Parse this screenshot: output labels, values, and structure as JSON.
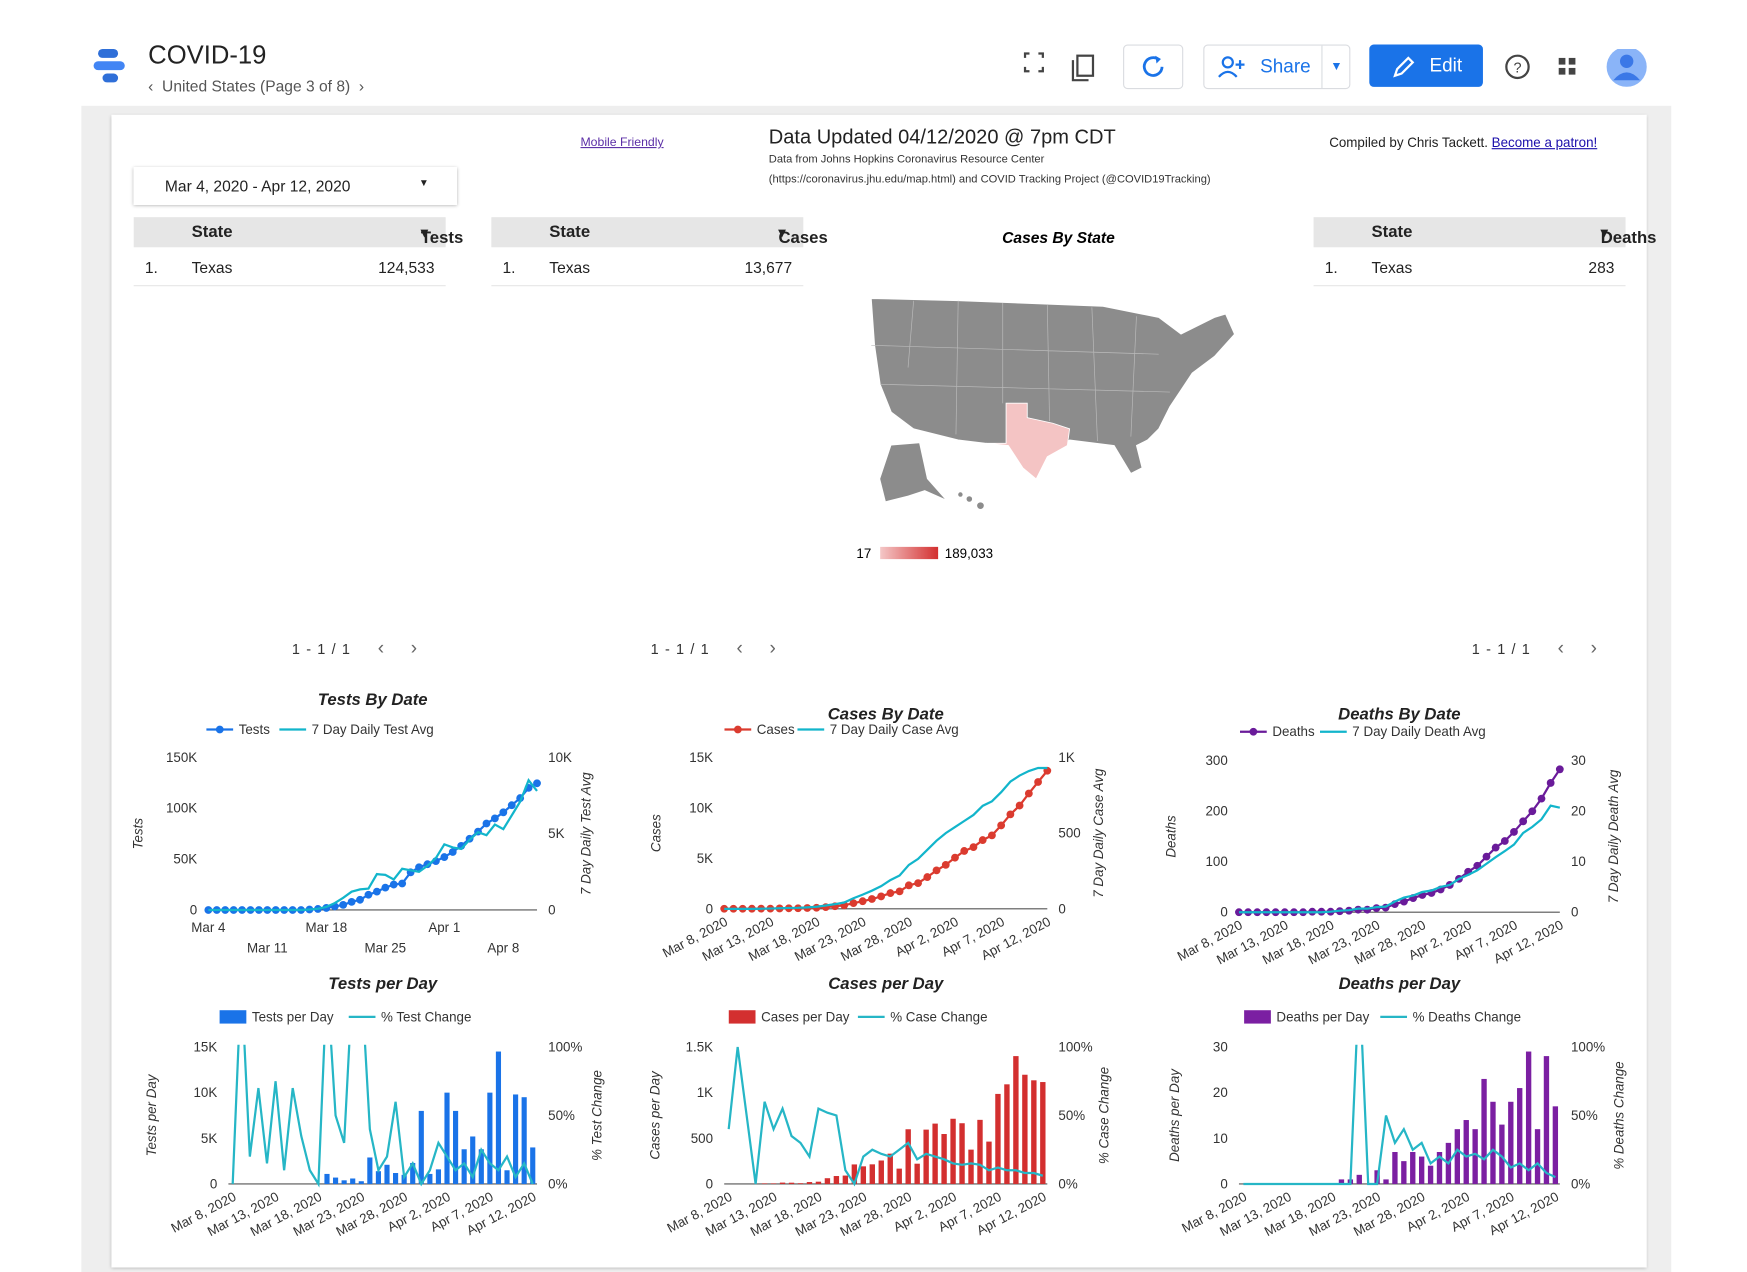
{
  "header": {
    "app_title": "COVID-19",
    "page": "United States (Page 3 of 8)",
    "share": "Share",
    "edit": "Edit"
  },
  "report": {
    "mobile": "Mobile Friendly",
    "updated": "Data Updated 04/12/2020 @ 7pm CDT",
    "source": [
      "Data from Johns Hopkins Coronavirus Resource Center",
      "(https://coronavirus.jhu.edu/map.html) and COVID Tracking Project (@COVID19Tracking)"
    ],
    "credit": "Compiled by Chris Tackett.",
    "patron": "Become a patron!",
    "date_range": "Mar 4, 2020 - Apr 12, 2020"
  },
  "tables": [
    {
      "headers": [
        "State",
        "Tests"
      ],
      "rows": [
        [
          "1.",
          "Texas",
          "124,533"
        ]
      ],
      "pagination": "1 - 1 / 1"
    },
    {
      "headers": [
        "State",
        "Cases"
      ],
      "rows": [
        [
          "1.",
          "Texas",
          "13,677"
        ]
      ],
      "pagination": "1 - 1 / 1"
    },
    {
      "headers": [
        "State",
        "Deaths"
      ],
      "rows": [
        [
          "1.",
          "Texas",
          "283"
        ]
      ],
      "pagination": "1 - 1 / 1"
    }
  ],
  "map": {
    "title": "Cases By State",
    "scale_labels": [
      "17",
      "189,033"
    ]
  },
  "chart_data": [
    {
      "type": "line",
      "title": "Tests By Date",
      "ylabel": "Tests",
      "y2label": "7 Day Daily Test Avg",
      "categories": [
        "Mar 4",
        null,
        null,
        null,
        null,
        null,
        null,
        "Mar 11",
        null,
        null,
        null,
        null,
        null,
        null,
        "Mar 18",
        null,
        null,
        null,
        null,
        null,
        null,
        "Mar 25",
        null,
        null,
        null,
        null,
        null,
        null,
        "Apr 1",
        null,
        null,
        null,
        null,
        null,
        null,
        "Apr 8",
        null,
        null,
        null,
        null
      ],
      "ylim": [
        0,
        150000
      ],
      "yticks": [
        0,
        {
          "value": 50000,
          "label": "50K"
        },
        {
          "value": 100000,
          "label": "100K"
        },
        {
          "value": 150000,
          "label": "150K"
        }
      ],
      "y2lim": [
        0,
        10000
      ],
      "y2ticks": [
        0,
        {
          "value": 5000,
          "label": "5K"
        },
        {
          "value": 10000,
          "label": "10K"
        }
      ],
      "grid": false,
      "series": [
        {
          "name": "Tests",
          "color": "#1a73e8",
          "type": "line",
          "markers": true,
          "values": [
            0,
            0,
            0,
            0,
            0,
            0,
            0,
            0,
            0,
            0,
            0,
            0,
            500,
            1000,
            2000,
            3500,
            5000,
            8000,
            10000,
            15000,
            18000,
            22000,
            25000,
            26000,
            37000,
            42000,
            45000,
            48000,
            52000,
            57000,
            63000,
            70000,
            77000,
            85000,
            90000,
            96000,
            103000,
            110000,
            120000,
            124533
          ]
        },
        {
          "name": "7 Day Daily Test Avg",
          "color": "#12b5cb",
          "type": "line",
          "axis": "y2",
          "values": [
            0,
            0,
            0,
            0,
            0,
            0,
            0,
            0,
            0,
            0,
            0,
            0,
            30,
            80,
            200,
            450,
            800,
            1200,
            1350,
            1400,
            2350,
            2300,
            2000,
            2700,
            2600,
            2500,
            2900,
            3400,
            4300,
            4100,
            4000,
            4600,
            5100,
            4900,
            5600,
            5300,
            6200,
            7100,
            8500,
            7800
          ]
        }
      ]
    },
    {
      "type": "line",
      "title": "Cases By Date",
      "ylabel": "Cases",
      "y2label": "7 Day Daily Case Avg",
      "categories": [
        "Mar 8, 2020",
        null,
        null,
        null,
        null,
        "Mar 13, 2020",
        null,
        null,
        null,
        null,
        "Mar 18, 2020",
        null,
        null,
        null,
        null,
        "Mar 23, 2020",
        null,
        null,
        null,
        null,
        "Mar 28, 2020",
        null,
        null,
        null,
        null,
        "Apr 2, 2020",
        null,
        null,
        null,
        null,
        "Apr 7, 2020",
        null,
        null,
        null,
        null,
        "Apr 12, 2020"
      ],
      "ylim": [
        0,
        15000
      ],
      "yticks": [
        0,
        {
          "value": 5000,
          "label": "5K"
        },
        {
          "value": 10000,
          "label": "10K"
        },
        {
          "value": 15000,
          "label": "15K"
        }
      ],
      "y2lim": [
        0,
        1000
      ],
      "y2ticks": [
        0,
        500,
        {
          "value": 1000,
          "label": "1K"
        }
      ],
      "grid": false,
      "series": [
        {
          "name": "Cases",
          "color": "#db3b2f",
          "type": "line",
          "markers": true,
          "values": [
            13,
            13,
            13,
            15,
            21,
            27,
            42,
            56,
            64,
            85,
            110,
            173,
            260,
            352,
            566,
            759,
            974,
            1231,
            1563,
            1731,
            2330,
            2552,
            3147,
            3808,
            4355,
            5069,
            5734,
            6110,
            6812,
            7276,
            8262,
            9353,
            10230,
            11426,
            12561,
            13677
          ]
        },
        {
          "name": "7 Day Daily Case Avg",
          "color": "#12b5cb",
          "type": "line",
          "axis": "y2",
          "values": [
            0,
            0,
            0,
            0,
            1,
            2,
            4,
            6,
            7,
            10,
            14,
            22,
            31,
            42,
            70,
            94,
            120,
            150,
            190,
            220,
            290,
            330,
            390,
            450,
            500,
            540,
            580,
            620,
            680,
            710,
            770,
            840,
            880,
            910,
            930,
            930
          ]
        }
      ]
    },
    {
      "type": "line",
      "title": "Deaths By Date",
      "ylabel": "Deaths",
      "y2label": "7 Day Daily Death Avg",
      "categories": [
        "Mar 8, 2020",
        null,
        null,
        null,
        null,
        "Mar 13, 2020",
        null,
        null,
        null,
        null,
        "Mar 18, 2020",
        null,
        null,
        null,
        null,
        "Mar 23, 2020",
        null,
        null,
        null,
        null,
        "Mar 28, 2020",
        null,
        null,
        null,
        null,
        "Apr 2, 2020",
        null,
        null,
        null,
        null,
        "Apr 7, 2020",
        null,
        null,
        null,
        null,
        "Apr 12, 2020"
      ],
      "ylim": [
        0,
        300
      ],
      "yticks": [
        0,
        100,
        200,
        300
      ],
      "y2lim": [
        0,
        30
      ],
      "y2ticks": [
        0,
        10,
        20,
        30
      ],
      "grid": false,
      "series": [
        {
          "name": "Deaths",
          "color": "#6a1b9a",
          "type": "line",
          "markers": true,
          "values": [
            0,
            0,
            0,
            0,
            0,
            0,
            0,
            0,
            1,
            1,
            1,
            2,
            3,
            5,
            5,
            8,
            9,
            16,
            21,
            28,
            34,
            38,
            45,
            54,
            66,
            80,
            92,
            110,
            128,
            141,
            159,
            180,
            200,
            225,
            256,
            283
          ]
        },
        {
          "name": "7 Day Daily Death Avg",
          "color": "#12b5cb",
          "type": "line",
          "axis": "y2",
          "values": [
            0,
            0,
            0,
            0,
            0,
            0,
            0,
            0,
            0,
            0,
            0.1,
            0.3,
            0.4,
            0.7,
            0.7,
            1,
            1.1,
            2.1,
            2.9,
            3.3,
            4,
            4.3,
            5,
            5.4,
            6.6,
            7.4,
            8.3,
            9.6,
            10.9,
            12.1,
            13.4,
            15.7,
            16.9,
            18.4,
            21.1,
            20.7
          ]
        }
      ]
    },
    {
      "type": "bar",
      "title": "Tests per Day",
      "ylabel": "Tests per Day",
      "y2label": "% Test Change",
      "categories": [
        "Mar 8, 2020",
        null,
        null,
        null,
        null,
        "Mar 13, 2020",
        null,
        null,
        null,
        null,
        "Mar 18, 2020",
        null,
        null,
        null,
        null,
        "Mar 23, 2020",
        null,
        null,
        null,
        null,
        "Mar 28, 2020",
        null,
        null,
        null,
        null,
        "Apr 2, 2020",
        null,
        null,
        null,
        null,
        "Apr 7, 2020",
        null,
        null,
        null,
        null,
        "Apr 12, 2020"
      ],
      "ylim": [
        0,
        15000
      ],
      "yticks": [
        0,
        {
          "value": 5000,
          "label": "5K"
        },
        {
          "value": 10000,
          "label": "10K"
        },
        {
          "value": 15000,
          "label": "15K"
        }
      ],
      "y2lim": [
        0,
        100
      ],
      "y2ticks": [
        {
          "value": 0,
          "label": "0%"
        },
        {
          "value": 50,
          "label": "50%"
        },
        {
          "value": 100,
          "label": "100%"
        }
      ],
      "grid": false,
      "series": [
        {
          "name": "Tests per Day",
          "color": "#1a73e8",
          "type": "bar",
          "values": [
            0,
            0,
            0,
            0,
            0,
            0,
            0,
            0,
            0,
            0,
            0,
            1100,
            700,
            400,
            600,
            300,
            2900,
            1400,
            2100,
            1200,
            1000,
            2300,
            8000,
            1100,
            1600,
            10000,
            8000,
            3800,
            5200,
            3800,
            10000,
            14500,
            1500,
            9800,
            9500,
            4000
          ]
        },
        {
          "name": "% Test Change",
          "color": "#26b6c6",
          "type": "line",
          "axis": "y2",
          "values": [
            0,
            150,
            20,
            70,
            15,
            75,
            10,
            70,
            35,
            10,
            0,
            150,
            50,
            30,
            150,
            150,
            40,
            10,
            20,
            60,
            5,
            15,
            0,
            10,
            30,
            20,
            10,
            15,
            5,
            25,
            15,
            10,
            20,
            5,
            15,
            0
          ]
        }
      ]
    },
    {
      "type": "bar",
      "title": "Cases per Day",
      "ylabel": "Cases per Day",
      "y2label": "% Case Change",
      "categories": [
        "Mar 8, 2020",
        null,
        null,
        null,
        null,
        "Mar 13, 2020",
        null,
        null,
        null,
        null,
        "Mar 18, 2020",
        null,
        null,
        null,
        null,
        "Mar 23, 2020",
        null,
        null,
        null,
        null,
        "Mar 28, 2020",
        null,
        null,
        null,
        null,
        "Apr 2, 2020",
        null,
        null,
        null,
        null,
        "Apr 7, 2020",
        null,
        null,
        null,
        null,
        "Apr 12, 2020"
      ],
      "ylim": [
        0,
        1500
      ],
      "yticks": [
        0,
        500,
        {
          "value": 1000,
          "label": "1K"
        },
        {
          "value": 1500,
          "label": "1.5K"
        }
      ],
      "y2lim": [
        0,
        100
      ],
      "y2ticks": [
        {
          "value": 0,
          "label": "0%"
        },
        {
          "value": 50,
          "label": "50%"
        },
        {
          "value": 100,
          "label": "100%"
        }
      ],
      "grid": false,
      "series": [
        {
          "name": "Cases per Day",
          "color": "#d32f2f",
          "type": "bar",
          "values": [
            0,
            0,
            0,
            2,
            6,
            6,
            15,
            14,
            8,
            21,
            25,
            63,
            87,
            92,
            214,
            193,
            215,
            257,
            332,
            168,
            599,
            222,
            595,
            661,
            547,
            714,
            665,
            376,
            702,
            464,
            986,
            1091,
            1400,
            1196,
            1135,
            1116
          ]
        },
        {
          "name": "% Case Change",
          "color": "#26b6c6",
          "type": "line",
          "axis": "y2",
          "values": [
            40,
            100,
            50,
            0,
            60,
            40,
            55,
            35,
            30,
            20,
            55,
            52,
            50,
            10,
            0,
            20,
            25,
            22,
            20,
            25,
            30,
            18,
            22,
            20,
            18,
            15,
            14,
            15,
            14,
            10,
            12,
            10,
            10,
            8,
            8,
            6
          ]
        }
      ]
    },
    {
      "type": "bar",
      "title": "Deaths per Day",
      "ylabel": "Deaths per Day",
      "y2label": "% Deaths Change",
      "categories": [
        "Mar 8, 2020",
        null,
        null,
        null,
        null,
        "Mar 13, 2020",
        null,
        null,
        null,
        null,
        "Mar 18, 2020",
        null,
        null,
        null,
        null,
        "Mar 23, 2020",
        null,
        null,
        null,
        null,
        "Mar 28, 2020",
        null,
        null,
        null,
        null,
        "Apr 2, 2020",
        null,
        null,
        null,
        null,
        "Apr 7, 2020",
        null,
        null,
        null,
        null,
        "Apr 12, 2020"
      ],
      "ylim": [
        0,
        30
      ],
      "yticks": [
        0,
        10,
        20,
        30
      ],
      "y2lim": [
        0,
        100
      ],
      "y2ticks": [
        {
          "value": 0,
          "label": "0%"
        },
        {
          "value": 50,
          "label": "50%"
        },
        {
          "value": 100,
          "label": "100%"
        }
      ],
      "grid": false,
      "series": [
        {
          "name": "Deaths per Day",
          "color": "#7b1fa2",
          "type": "bar",
          "values": [
            0,
            0,
            0,
            0,
            0,
            0,
            0,
            0,
            0,
            0,
            0,
            1,
            1,
            2,
            0,
            3,
            1,
            7,
            5,
            7,
            6,
            4,
            7,
            9,
            12,
            14,
            12,
            23,
            18,
            13,
            18,
            21,
            29,
            12,
            28,
            17
          ]
        },
        {
          "name": "% Deaths Change",
          "color": "#26b6c6",
          "type": "line",
          "axis": "y2",
          "values": [
            0,
            0,
            0,
            0,
            0,
            0,
            0,
            0,
            0,
            0,
            0,
            0,
            0,
            150,
            0,
            0,
            50,
            30,
            40,
            25,
            30,
            15,
            20,
            15,
            25,
            20,
            22,
            18,
            25,
            20,
            12,
            15,
            10,
            15,
            8,
            5
          ]
        }
      ]
    }
  ]
}
